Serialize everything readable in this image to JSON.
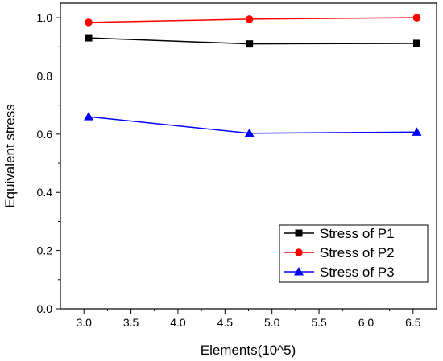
{
  "chart_data": {
    "type": "line",
    "title": "",
    "xlabel": "Elements(10^5)",
    "ylabel": "Equivalent stress",
    "xlim": [
      2.75,
      6.75
    ],
    "ylim": [
      0.0,
      1.05
    ],
    "x_ticks": [
      "3.0",
      "3.5",
      "4.0",
      "4.5",
      "5.0",
      "5.5",
      "6.0",
      "6.5"
    ],
    "y_ticks": [
      "0.0",
      "0.2",
      "0.4",
      "0.6",
      "0.8",
      "1.0"
    ],
    "grid": false,
    "legend_position": "bottom-right",
    "x": [
      3.05,
      4.76,
      6.54
    ],
    "series": [
      {
        "name": "Stress of P1",
        "values": [
          0.931,
          0.91,
          0.912
        ],
        "color": "#000000",
        "marker": "square"
      },
      {
        "name": "Stress of P2",
        "values": [
          0.984,
          0.995,
          1.0
        ],
        "color": "#ff0000",
        "marker": "circle"
      },
      {
        "name": "Stress of P3",
        "values": [
          0.66,
          0.603,
          0.607
        ],
        "color": "#0000ff",
        "marker": "triangle"
      }
    ]
  }
}
